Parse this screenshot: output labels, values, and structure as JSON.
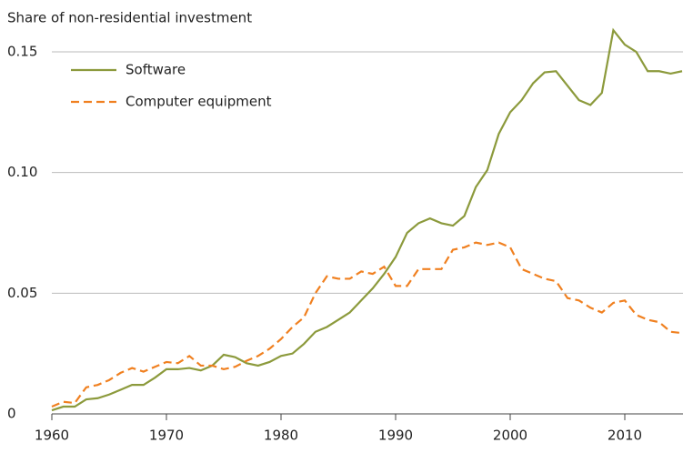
{
  "chart_data": {
    "type": "line",
    "y_label": "Share of non-residential investment",
    "x": [
      1960,
      1961,
      1962,
      1963,
      1964,
      1965,
      1966,
      1967,
      1968,
      1969,
      1970,
      1971,
      1972,
      1973,
      1974,
      1975,
      1976,
      1977,
      1978,
      1979,
      1980,
      1981,
      1982,
      1983,
      1984,
      1985,
      1986,
      1987,
      1988,
      1989,
      1990,
      1991,
      1992,
      1993,
      1994,
      1995,
      1996,
      1997,
      1998,
      1999,
      2000,
      2001,
      2002,
      2003,
      2004,
      2005,
      2006,
      2007,
      2008,
      2009,
      2010,
      2011,
      2012,
      2013,
      2014,
      2015
    ],
    "series": [
      {
        "name": "Software",
        "color": "#8c9a3c",
        "dashed": false,
        "values": [
          0.0015,
          0.003,
          0.003,
          0.006,
          0.0065,
          0.008,
          0.01,
          0.012,
          0.012,
          0.015,
          0.0185,
          0.0185,
          0.019,
          0.018,
          0.02,
          0.0245,
          0.0235,
          0.021,
          0.02,
          0.0215,
          0.024,
          0.025,
          0.029,
          0.034,
          0.036,
          0.039,
          0.042,
          0.047,
          0.052,
          0.058,
          0.065,
          0.075,
          0.079,
          0.081,
          0.079,
          0.078,
          0.082,
          0.094,
          0.101,
          0.116,
          0.125,
          0.13,
          0.137,
          0.1415,
          0.142,
          0.136,
          0.13,
          0.128,
          0.133,
          0.159,
          0.153,
          0.15,
          0.142,
          0.142,
          0.141,
          0.142
        ]
      },
      {
        "name": "Computer equipment",
        "color": "#f08020",
        "dashed": true,
        "values": [
          0.003,
          0.005,
          0.0045,
          0.011,
          0.012,
          0.014,
          0.017,
          0.019,
          0.0175,
          0.0195,
          0.0215,
          0.021,
          0.024,
          0.02,
          0.02,
          0.0185,
          0.0195,
          0.022,
          0.024,
          0.027,
          0.031,
          0.036,
          0.04,
          0.05,
          0.057,
          0.056,
          0.056,
          0.059,
          0.058,
          0.061,
          0.053,
          0.053,
          0.06,
          0.06,
          0.06,
          0.068,
          0.069,
          0.071,
          0.07,
          0.071,
          0.069,
          0.06,
          0.058,
          0.056,
          0.055,
          0.048,
          0.047,
          0.044,
          0.042,
          0.046,
          0.047,
          0.041,
          0.039,
          0.038,
          0.034,
          0.0335
        ]
      }
    ],
    "xlim": [
      1960,
      2015
    ],
    "xticks": [
      1960,
      1970,
      1980,
      1990,
      2000,
      2010
    ],
    "ylim": [
      -0.002,
      0.16
    ],
    "yticks": [
      {
        "value": 0,
        "label": "0"
      },
      0.05,
      {
        "value": 0.1,
        "label": "0.10"
      },
      0.15
    ],
    "grid": true,
    "legend": "upper left"
  }
}
